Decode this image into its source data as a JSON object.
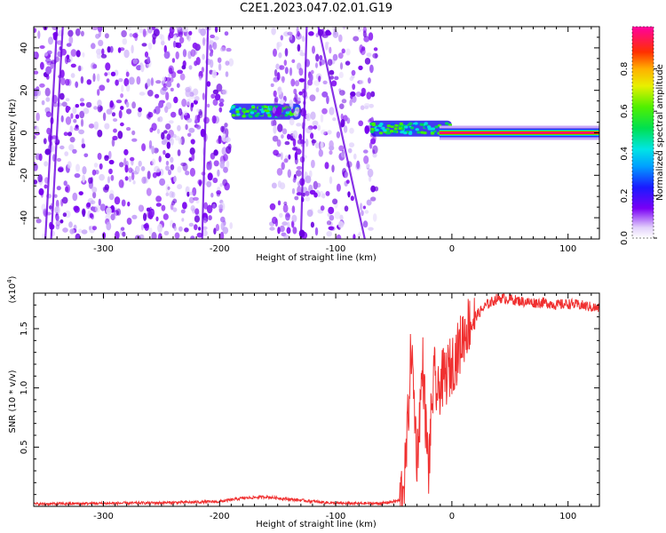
{
  "title": "C2E1.2023.047.02.01.G19",
  "colors": {
    "noise_purple": "#7b00f0",
    "noise_light": "#d9c6fb",
    "snr_line": "#f03030",
    "axis": "#000000"
  },
  "chart_data": [
    {
      "type": "heatmap",
      "xlabel": "Height of straight line (km)",
      "ylabel": "Frequency (Hz)",
      "xlim": [
        -360,
        127
      ],
      "ylim": [
        -50,
        50
      ],
      "xticks": [
        -300,
        -200,
        -100,
        0,
        100
      ],
      "yticks": [
        -40,
        -20,
        0,
        20,
        40
      ],
      "colorbar": {
        "label": "Normalized spectral amplitude",
        "range": [
          0,
          1
        ],
        "ticks": [
          "0.0",
          "0.2",
          "0.4",
          "0.6",
          "0.8"
        ],
        "colormap": "rainbow"
      },
      "features": [
        {
          "x_range": [
            -360,
            -190
          ],
          "y_range": [
            -50,
            50
          ],
          "kind": "noise"
        },
        {
          "x_range": [
            -190,
            -130
          ],
          "y_center": 10,
          "kind": "signal"
        },
        {
          "x_range": [
            -155,
            -65
          ],
          "y_range": [
            -50,
            50
          ],
          "kind": "noise"
        },
        {
          "x_range": [
            -70,
            0
          ],
          "y_center": 2,
          "kind": "signal"
        },
        {
          "x_range": [
            0,
            127
          ],
          "y_center": 0,
          "kind": "strong-signal"
        }
      ]
    },
    {
      "type": "line",
      "xlabel": "Height of straight line (km)",
      "ylabel": "SNR (10 * v/v)",
      "ylabel_exponent": "(x10^4)",
      "ylabel_exponent_base": "(x10",
      "ylabel_exponent_power": "4",
      "ylabel_exponent_close": ")",
      "xlim": [
        -360,
        127
      ],
      "ylim": [
        0,
        18000
      ],
      "xticks": [
        -300,
        -200,
        -100,
        0,
        100
      ],
      "yticks": [
        {
          "value": 5000,
          "label": "0.5"
        },
        {
          "value": 10000,
          "label": "1.0"
        },
        {
          "value": 15000,
          "label": "1.5"
        }
      ],
      "series": [
        {
          "color": "#f03030",
          "x": [
            -360,
            -300,
            -250,
            -200,
            -180,
            -160,
            -140,
            -100,
            -60,
            -45,
            -40,
            -37,
            -35,
            -32,
            -30,
            -27,
            -25,
            -22,
            -20,
            -17,
            -15,
            -12,
            -10,
            -5,
            0,
            5,
            10,
            15,
            20,
            30,
            40,
            50,
            60,
            70,
            80,
            90,
            100,
            110,
            127
          ],
          "y": [
            200,
            250,
            300,
            400,
            700,
            800,
            600,
            250,
            250,
            500,
            3000,
            9000,
            13500,
            8000,
            4000,
            9000,
            12000,
            6000,
            3000,
            9000,
            11000,
            9000,
            10500,
            11000,
            12000,
            13000,
            14500,
            15500,
            16000,
            17000,
            17600,
            17500,
            17300,
            17200,
            17200,
            17000,
            17100,
            17000,
            16700
          ]
        }
      ]
    }
  ]
}
